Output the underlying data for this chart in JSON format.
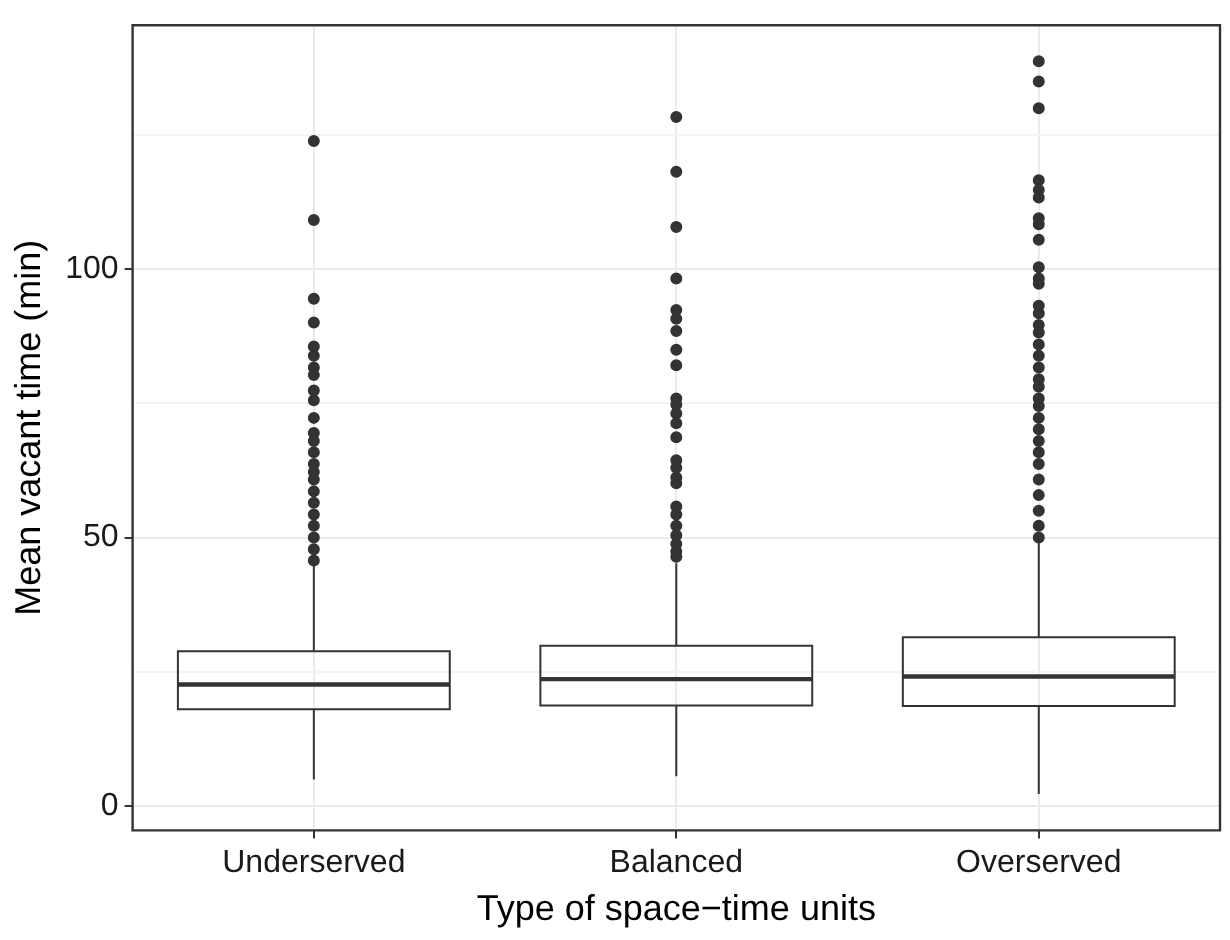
{
  "chart_data": {
    "type": "box",
    "xlabel": "Type of space−time units",
    "ylabel": "Mean vacant time (min)",
    "categories": [
      "Underserved",
      "Balanced",
      "Overserved"
    ],
    "boxes": [
      {
        "low": 4.9,
        "q1": 18.0,
        "median": 22.6,
        "q3": 28.8,
        "high": 45.0,
        "outliers": [
          123.9,
          109.2,
          94.5,
          90.1,
          85.6,
          83.9,
          81.7,
          80.3,
          77.4,
          75.6,
          72.3,
          69.5,
          68,
          65.9,
          63.7,
          62.2,
          60.8,
          58.6,
          56.5,
          54.3,
          52.2,
          50,
          47.8,
          45.7
        ]
      },
      {
        "low": 5.5,
        "q1": 18.7,
        "median": 23.6,
        "q3": 29.8,
        "high": 45.2,
        "outliers": [
          128.4,
          118.2,
          107.9,
          98.3,
          92.4,
          90.8,
          88.5,
          85,
          82.1,
          75.9,
          74.8,
          73.1,
          71.3,
          68.7,
          64.4,
          63,
          61.2,
          60.1,
          55.8,
          54.3,
          52.2,
          50.4,
          48.8,
          47.4,
          46.4
        ]
      },
      {
        "low": 2.2,
        "q1": 18.6,
        "median": 24.1,
        "q3": 31.4,
        "high": 49.7,
        "outliers": [
          138.8,
          135,
          130,
          116.6,
          114.8,
          113.4,
          109.5,
          108.4,
          105.5,
          100.4,
          98.3,
          97.3,
          93.2,
          91.8,
          89.6,
          88.2,
          86,
          83.9,
          81.7,
          79.5,
          78.1,
          75.9,
          74.5,
          72.3,
          70.2,
          68,
          65.9,
          63.7,
          60.8,
          57.9,
          55,
          52.2,
          50
        ]
      }
    ],
    "color": "#333333",
    "ylim": [
      -4.6,
      145.5
    ],
    "yticks": [
      0,
      {
        "value": 25,
        "label": null
      },
      50,
      {
        "value": 75,
        "label": null
      },
      100,
      {
        "value": 125,
        "label": null
      }
    ],
    "grid": true,
    "legend": false
  }
}
